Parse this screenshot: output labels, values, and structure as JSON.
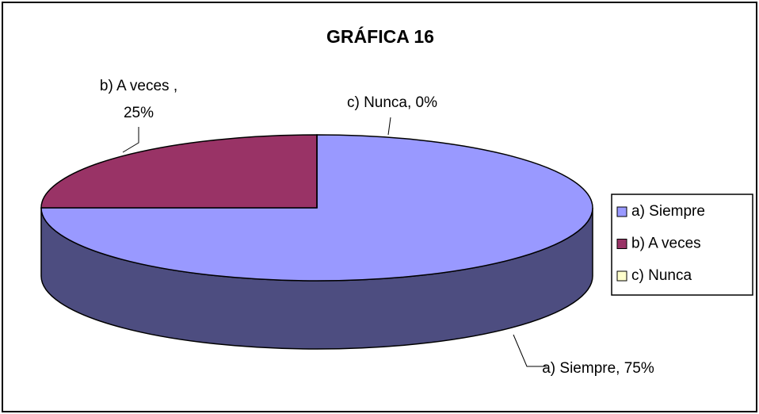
{
  "chart_data": {
    "type": "pie3d",
    "title": "GRÁFICA 16",
    "categories": [
      "a) Siempre",
      "b) A veces",
      "c) Nunca"
    ],
    "values": [
      75,
      25,
      0
    ],
    "value_labels": [
      "a) Siempre, 75%",
      "b) A veces , 25%",
      "c) Nunca, 0%"
    ],
    "colors": [
      "#9999ff",
      "#993366",
      "#ffffcc"
    ],
    "legend": "right"
  }
}
